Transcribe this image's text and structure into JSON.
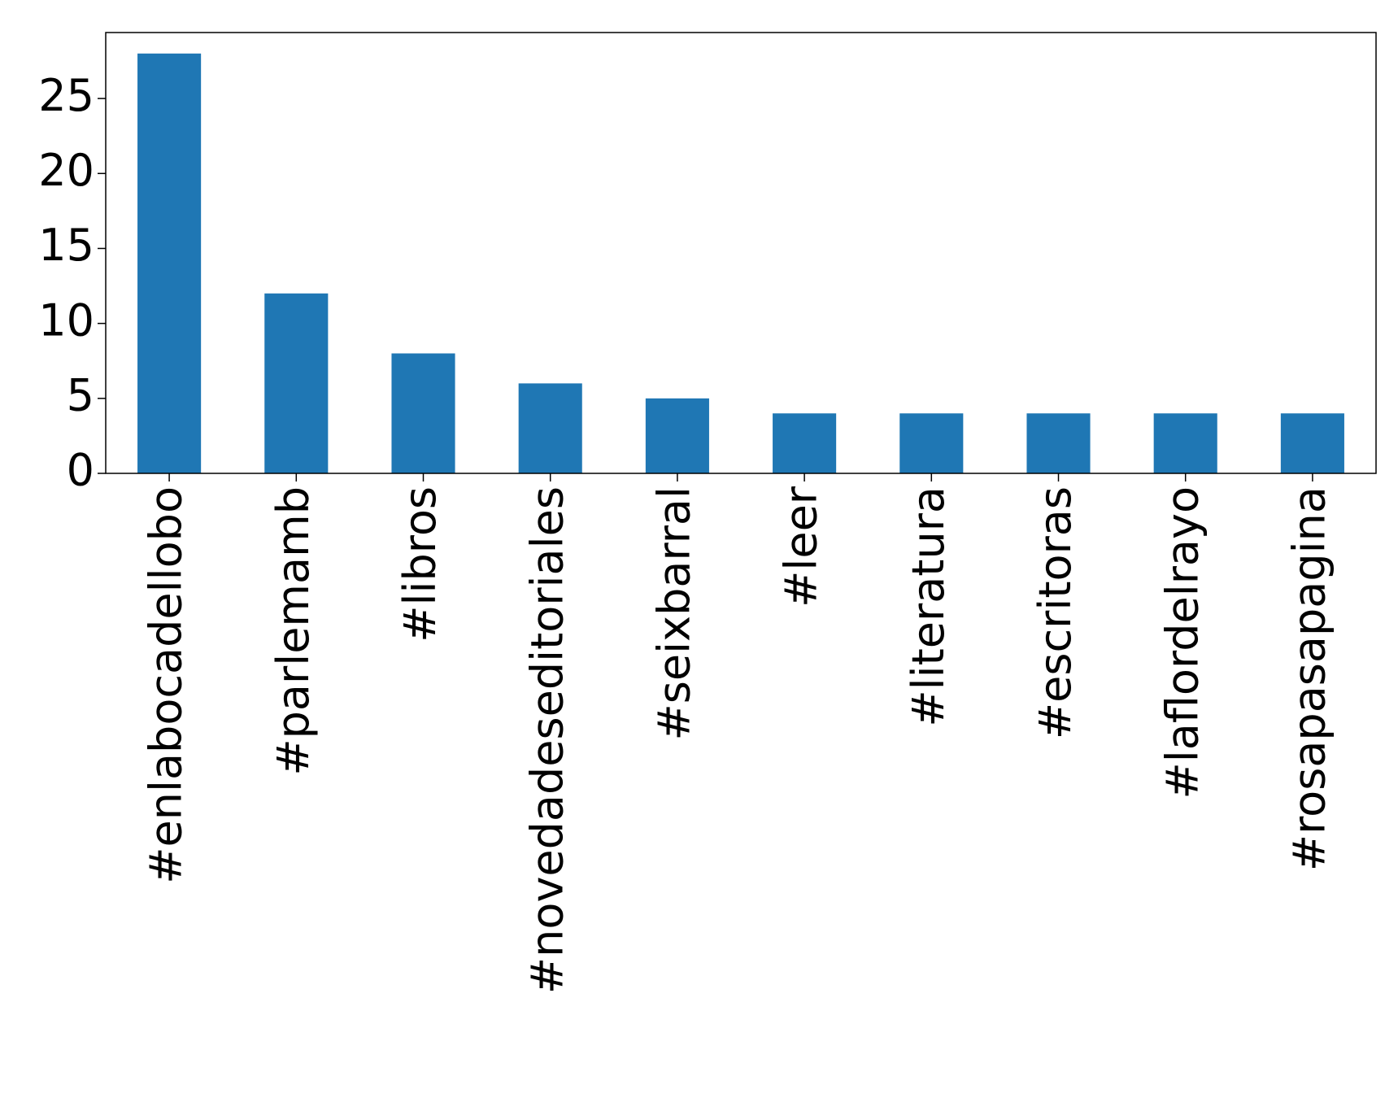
{
  "chart_data": {
    "type": "bar",
    "categories": [
      "#enlabocadellobo",
      "#parlemamb",
      "#libros",
      "#novedadeseditoriales",
      "#seixbarral",
      "#leer",
      "#literatura",
      "#escritoras",
      "#laflordelrayo",
      "#rosapasapagina"
    ],
    "values": [
      28,
      12,
      8,
      6,
      5,
      4,
      4,
      4,
      4,
      4
    ],
    "color": "#1f77b4",
    "ylim": [
      0,
      29.4
    ],
    "yticks": [
      0,
      5,
      10,
      15,
      20,
      25
    ],
    "grid": false
  }
}
